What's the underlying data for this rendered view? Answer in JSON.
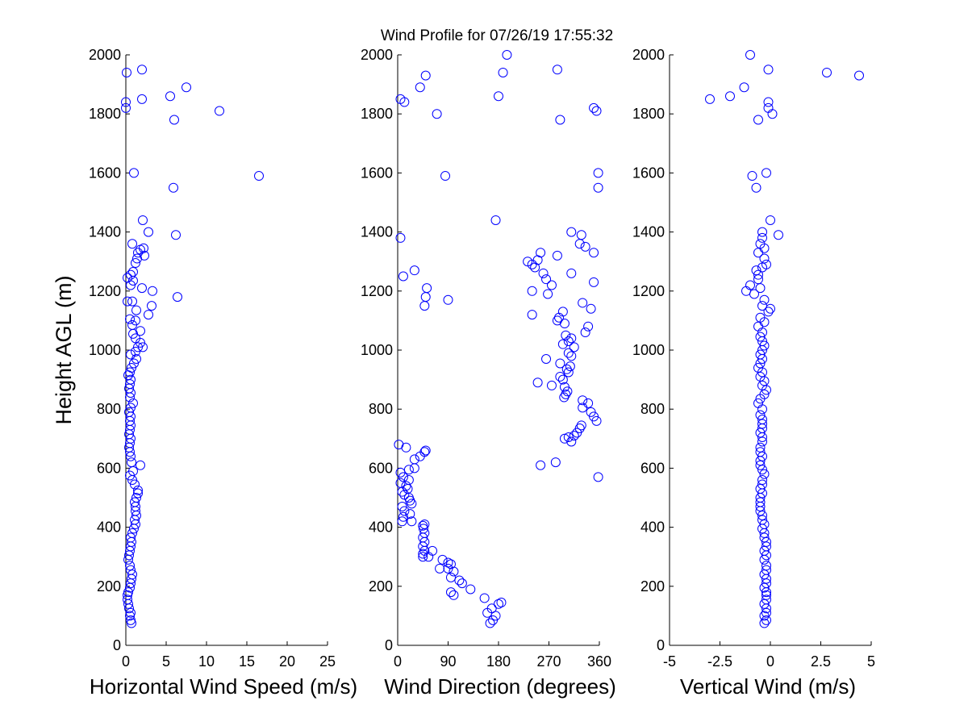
{
  "title": "Wind Profile for  07/26/19 17:55:32",
  "chart_data": [
    {
      "type": "scatter",
      "xlabel": "Horizontal Wind Speed (m/s)",
      "ylabel": "Height AGL (m)",
      "xlim": [
        0,
        25
      ],
      "ylim": [
        0,
        2000
      ],
      "xticks": [
        "0",
        "5",
        "10",
        "15",
        "20",
        "25"
      ],
      "yticks": [
        "0",
        "200",
        "400",
        "600",
        "800",
        "1000",
        "1200",
        "1400",
        "1600",
        "1800",
        "2000"
      ],
      "marker_color": "#0000ff",
      "points": [
        [
          0.7,
          75
        ],
        [
          0.6,
          85
        ],
        [
          0.5,
          100
        ],
        [
          0.6,
          110
        ],
        [
          0.4,
          125
        ],
        [
          0.3,
          140
        ],
        [
          0.2,
          155
        ],
        [
          0.2,
          170
        ],
        [
          0.3,
          180
        ],
        [
          0.5,
          195
        ],
        [
          0.6,
          210
        ],
        [
          0.7,
          225
        ],
        [
          0.8,
          240
        ],
        [
          0.6,
          255
        ],
        [
          0.5,
          270
        ],
        [
          0.3,
          290
        ],
        [
          0.4,
          305
        ],
        [
          0.5,
          320
        ],
        [
          0.6,
          335
        ],
        [
          0.7,
          350
        ],
        [
          0.6,
          365
        ],
        [
          0.8,
          380
        ],
        [
          1.0,
          395
        ],
        [
          1.2,
          410
        ],
        [
          1.1,
          425
        ],
        [
          1.3,
          440
        ],
        [
          1.2,
          455
        ],
        [
          1.2,
          470
        ],
        [
          1.1,
          485
        ],
        [
          1.3,
          500
        ],
        [
          1.5,
          515
        ],
        [
          1.5,
          525
        ],
        [
          1.1,
          545
        ],
        [
          0.8,
          560
        ],
        [
          0.5,
          575
        ],
        [
          0.9,
          590
        ],
        [
          1.8,
          610
        ],
        [
          0.7,
          620
        ],
        [
          0.6,
          640
        ],
        [
          0.5,
          655
        ],
        [
          0.4,
          670
        ],
        [
          0.5,
          685
        ],
        [
          0.6,
          700
        ],
        [
          0.4,
          715
        ],
        [
          0.5,
          730
        ],
        [
          0.6,
          745
        ],
        [
          0.5,
          760
        ],
        [
          0.6,
          775
        ],
        [
          0.4,
          790
        ],
        [
          0.6,
          805
        ],
        [
          0.9,
          820
        ],
        [
          0.5,
          840
        ],
        [
          0.6,
          855
        ],
        [
          0.4,
          870
        ],
        [
          0.5,
          885
        ],
        [
          0.6,
          900
        ],
        [
          0.3,
          915
        ],
        [
          0.5,
          925
        ],
        [
          0.7,
          940
        ],
        [
          1.0,
          955
        ],
        [
          1.3,
          970
        ],
        [
          0.6,
          985
        ],
        [
          1.2,
          995
        ],
        [
          1.5,
          1010
        ],
        [
          2.1,
          1010
        ],
        [
          1.8,
          1025
        ],
        [
          1.2,
          1040
        ],
        [
          0.9,
          1055
        ],
        [
          1.8,
          1065
        ],
        [
          0.8,
          1085
        ],
        [
          1.2,
          1100
        ],
        [
          0.5,
          1105
        ],
        [
          2.8,
          1120
        ],
        [
          1.3,
          1135
        ],
        [
          3.2,
          1150
        ],
        [
          0.8,
          1165
        ],
        [
          6.4,
          1180
        ],
        [
          0.2,
          1165
        ],
        [
          2.0,
          1210
        ],
        [
          3.3,
          1200
        ],
        [
          0.6,
          1220
        ],
        [
          0.9,
          1235
        ],
        [
          0.2,
          1245
        ],
        [
          0.6,
          1255
        ],
        [
          0.9,
          1265
        ],
        [
          1.2,
          1295
        ],
        [
          1.4,
          1310
        ],
        [
          1.5,
          1330
        ],
        [
          2.3,
          1320
        ],
        [
          2.2,
          1345
        ],
        [
          1.8,
          1340
        ],
        [
          0.8,
          1360
        ],
        [
          2.8,
          1400
        ],
        [
          6.2,
          1390
        ],
        [
          2.1,
          1440
        ],
        [
          5.9,
          1550
        ],
        [
          16.5,
          1590
        ],
        [
          1.0,
          1600
        ],
        [
          6.0,
          1780
        ],
        [
          0.0,
          1820
        ],
        [
          0.0,
          1840
        ],
        [
          2.0,
          1850
        ],
        [
          5.5,
          1860
        ],
        [
          11.6,
          1810
        ],
        [
          7.5,
          1890
        ],
        [
          0.1,
          1940
        ],
        [
          2.0,
          1950
        ]
      ]
    },
    {
      "type": "scatter",
      "xlabel": "Wind Direction (degrees)",
      "ylabel": "",
      "xlim": [
        0,
        360
      ],
      "ylim": [
        0,
        2000
      ],
      "xticks": [
        "0",
        "90",
        "180",
        "270",
        "360"
      ],
      "yticks": [
        "0",
        "200",
        "400",
        "600",
        "800",
        "1000",
        "1200",
        "1400",
        "1600",
        "1800",
        "2000"
      ],
      "marker_color": "#0000ff",
      "points": [
        [
          165,
          75
        ],
        [
          170,
          85
        ],
        [
          175,
          100
        ],
        [
          160,
          110
        ],
        [
          168,
          125
        ],
        [
          180,
          140
        ],
        [
          185,
          145
        ],
        [
          155,
          160
        ],
        [
          100,
          170
        ],
        [
          95,
          180
        ],
        [
          130,
          190
        ],
        [
          115,
          210
        ],
        [
          110,
          220
        ],
        [
          95,
          230
        ],
        [
          100,
          250
        ],
        [
          90,
          260
        ],
        [
          75,
          260
        ],
        [
          95,
          275
        ],
        [
          90,
          280
        ],
        [
          80,
          290
        ],
        [
          45,
          300
        ],
        [
          55,
          300
        ],
        [
          45,
          310
        ],
        [
          48,
          320
        ],
        [
          62,
          320
        ],
        [
          45,
          335
        ],
        [
          48,
          350
        ],
        [
          45,
          365
        ],
        [
          48,
          380
        ],
        [
          46,
          395
        ],
        [
          45,
          405
        ],
        [
          48,
          410
        ],
        [
          8,
          420
        ],
        [
          25,
          420
        ],
        [
          10,
          435
        ],
        [
          22,
          445
        ],
        [
          12,
          455
        ],
        [
          8,
          470
        ],
        [
          25,
          480
        ],
        [
          22,
          490
        ],
        [
          20,
          500
        ],
        [
          12,
          510
        ],
        [
          8,
          520
        ],
        [
          18,
          530
        ],
        [
          15,
          540
        ],
        [
          5,
          550
        ],
        [
          20,
          560
        ],
        [
          10,
          570
        ],
        [
          5,
          585
        ],
        [
          20,
          595
        ],
        [
          30,
          600
        ],
        [
          358,
          570
        ],
        [
          255,
          610
        ],
        [
          282,
          620
        ],
        [
          30,
          630
        ],
        [
          40,
          640
        ],
        [
          48,
          655
        ],
        [
          50,
          660
        ],
        [
          15,
          670
        ],
        [
          2,
          680
        ],
        [
          298,
          700
        ],
        [
          310,
          690
        ],
        [
          305,
          705
        ],
        [
          315,
          710
        ],
        [
          320,
          720
        ],
        [
          325,
          735
        ],
        [
          328,
          745
        ],
        [
          355,
          760
        ],
        [
          350,
          775
        ],
        [
          345,
          790
        ],
        [
          330,
          805
        ],
        [
          340,
          820
        ],
        [
          330,
          830
        ],
        [
          297,
          840
        ],
        [
          300,
          850
        ],
        [
          303,
          860
        ],
        [
          298,
          875
        ],
        [
          275,
          880
        ],
        [
          250,
          890
        ],
        [
          295,
          900
        ],
        [
          290,
          910
        ],
        [
          305,
          925
        ],
        [
          302,
          935
        ],
        [
          308,
          945
        ],
        [
          290,
          955
        ],
        [
          265,
          970
        ],
        [
          310,
          980
        ],
        [
          305,
          990
        ],
        [
          315,
          1010
        ],
        [
          295,
          1020
        ],
        [
          305,
          1030
        ],
        [
          310,
          1040
        ],
        [
          300,
          1050
        ],
        [
          335,
          1060
        ],
        [
          340,
          1080
        ],
        [
          298,
          1090
        ],
        [
          285,
          1100
        ],
        [
          288,
          1110
        ],
        [
          240,
          1120
        ],
        [
          295,
          1130
        ],
        [
          345,
          1140
        ],
        [
          48,
          1150
        ],
        [
          330,
          1160
        ],
        [
          90,
          1170
        ],
        [
          50,
          1180
        ],
        [
          268,
          1190
        ],
        [
          240,
          1200
        ],
        [
          52,
          1210
        ],
        [
          275,
          1220
        ],
        [
          350,
          1230
        ],
        [
          265,
          1240
        ],
        [
          10,
          1250
        ],
        [
          260,
          1260
        ],
        [
          310,
          1260
        ],
        [
          30,
          1270
        ],
        [
          245,
          1280
        ],
        [
          240,
          1290
        ],
        [
          232,
          1300
        ],
        [
          250,
          1305
        ],
        [
          285,
          1320
        ],
        [
          255,
          1330
        ],
        [
          350,
          1330
        ],
        [
          335,
          1350
        ],
        [
          325,
          1360
        ],
        [
          5,
          1380
        ],
        [
          328,
          1390
        ],
        [
          310,
          1400
        ],
        [
          175,
          1440
        ],
        [
          358,
          1550
        ],
        [
          358,
          1600
        ],
        [
          85,
          1590
        ],
        [
          290,
          1780
        ],
        [
          70,
          1800
        ],
        [
          355,
          1810
        ],
        [
          350,
          1820
        ],
        [
          12,
          1840
        ],
        [
          5,
          1850
        ],
        [
          180,
          1860
        ],
        [
          40,
          1890
        ],
        [
          188,
          1940
        ],
        [
          285,
          1950
        ],
        [
          50,
          1930
        ],
        [
          195,
          2000
        ]
      ]
    },
    {
      "type": "scatter",
      "xlabel": "Vertical Wind (m/s)",
      "ylabel": "",
      "xlim": [
        -5,
        5
      ],
      "ylim": [
        0,
        2000
      ],
      "xticks": [
        "-5",
        "-2.5",
        "0",
        "2.5",
        "5"
      ],
      "yticks": [
        "0",
        "200",
        "400",
        "600",
        "800",
        "1000",
        "1200",
        "1400",
        "1600",
        "1800",
        "2000"
      ],
      "marker_color": "#0000ff",
      "points": [
        [
          -0.3,
          75
        ],
        [
          -0.2,
          85
        ],
        [
          -0.3,
          100
        ],
        [
          -0.2,
          110
        ],
        [
          -0.2,
          125
        ],
        [
          -0.3,
          140
        ],
        [
          -0.2,
          155
        ],
        [
          -0.2,
          170
        ],
        [
          -0.2,
          180
        ],
        [
          -0.3,
          195
        ],
        [
          -0.2,
          210
        ],
        [
          -0.2,
          225
        ],
        [
          -0.3,
          240
        ],
        [
          -0.2,
          255
        ],
        [
          -0.2,
          270
        ],
        [
          -0.3,
          290
        ],
        [
          -0.2,
          305
        ],
        [
          -0.3,
          320
        ],
        [
          -0.2,
          335
        ],
        [
          -0.2,
          350
        ],
        [
          -0.3,
          365
        ],
        [
          -0.3,
          380
        ],
        [
          -0.4,
          395
        ],
        [
          -0.3,
          410
        ],
        [
          -0.4,
          425
        ],
        [
          -0.4,
          440
        ],
        [
          -0.5,
          455
        ],
        [
          -0.5,
          470
        ],
        [
          -0.5,
          485
        ],
        [
          -0.5,
          500
        ],
        [
          -0.4,
          515
        ],
        [
          -0.5,
          530
        ],
        [
          -0.4,
          545
        ],
        [
          -0.4,
          560
        ],
        [
          -0.3,
          580
        ],
        [
          -0.4,
          595
        ],
        [
          -0.5,
          610
        ],
        [
          -0.5,
          625
        ],
        [
          -0.4,
          640
        ],
        [
          -0.5,
          655
        ],
        [
          -0.5,
          670
        ],
        [
          -0.4,
          690
        ],
        [
          -0.4,
          705
        ],
        [
          -0.5,
          720
        ],
        [
          -0.4,
          735
        ],
        [
          -0.4,
          750
        ],
        [
          -0.4,
          765
        ],
        [
          -0.5,
          780
        ],
        [
          -0.4,
          800
        ],
        [
          -0.6,
          820
        ],
        [
          -0.5,
          835
        ],
        [
          -0.3,
          850
        ],
        [
          -0.2,
          865
        ],
        [
          -0.4,
          880
        ],
        [
          -0.3,
          895
        ],
        [
          -0.5,
          910
        ],
        [
          -0.4,
          925
        ],
        [
          -0.6,
          940
        ],
        [
          -0.5,
          955
        ],
        [
          -0.4,
          970
        ],
        [
          -0.5,
          985
        ],
        [
          -0.4,
          1000
        ],
        [
          -0.3,
          1015
        ],
        [
          -0.4,
          1030
        ],
        [
          -0.5,
          1045
        ],
        [
          -0.4,
          1060
        ],
        [
          -0.6,
          1080
        ],
        [
          -0.3,
          1095
        ],
        [
          -0.5,
          1110
        ],
        [
          -0.1,
          1130
        ],
        [
          0.0,
          1140
        ],
        [
          -0.4,
          1150
        ],
        [
          -0.3,
          1170
        ],
        [
          -1.2,
          1200
        ],
        [
          -0.8,
          1190
        ],
        [
          -1.0,
          1220
        ],
        [
          -0.5,
          1210
        ],
        [
          -0.6,
          1240
        ],
        [
          -0.6,
          1255
        ],
        [
          -0.7,
          1270
        ],
        [
          -0.4,
          1280
        ],
        [
          -0.2,
          1290
        ],
        [
          -0.3,
          1310
        ],
        [
          -0.6,
          1330
        ],
        [
          -0.3,
          1345
        ],
        [
          -0.5,
          1360
        ],
        [
          -0.4,
          1380
        ],
        [
          -0.4,
          1400
        ],
        [
          0.4,
          1390
        ],
        [
          0.0,
          1440
        ],
        [
          -0.7,
          1550
        ],
        [
          -0.9,
          1590
        ],
        [
          -0.2,
          1600
        ],
        [
          -0.6,
          1780
        ],
        [
          0.1,
          1800
        ],
        [
          -0.1,
          1820
        ],
        [
          -0.1,
          1840
        ],
        [
          -2.0,
          1860
        ],
        [
          -3.0,
          1850
        ],
        [
          -1.3,
          1890
        ],
        [
          2.8,
          1940
        ],
        [
          4.4,
          1930
        ],
        [
          -0.1,
          1950
        ],
        [
          -1.0,
          2000
        ]
      ]
    }
  ]
}
